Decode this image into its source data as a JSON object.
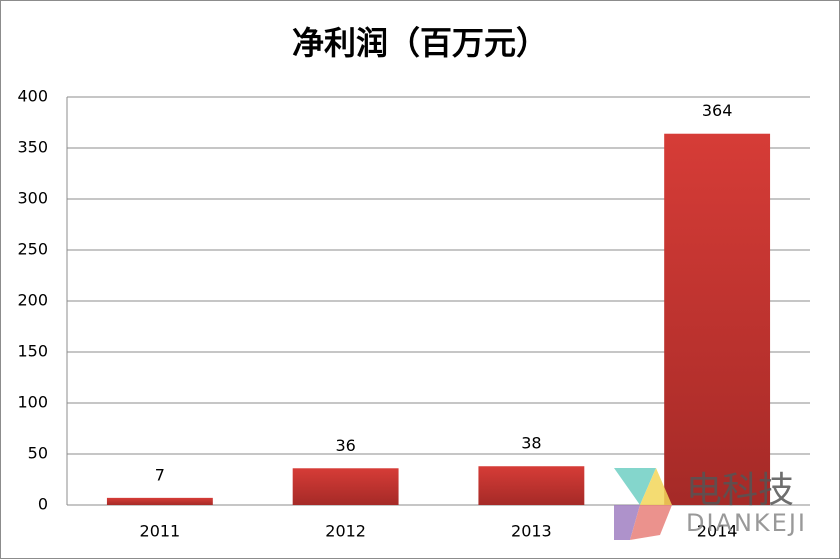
{
  "chart_data": {
    "type": "bar",
    "title": "净利润（百万元）",
    "categories": [
      "2011",
      "2012",
      "2013",
      "2014"
    ],
    "values": [
      7,
      36,
      38,
      364
    ],
    "color": "#c9332f",
    "ylim": [
      0,
      400
    ],
    "yticks": [
      0,
      50,
      100,
      150,
      200,
      250,
      300,
      350,
      400
    ],
    "grid": true
  },
  "watermark": {
    "title": "电科技",
    "subtitle": "DIANKEJI"
  }
}
